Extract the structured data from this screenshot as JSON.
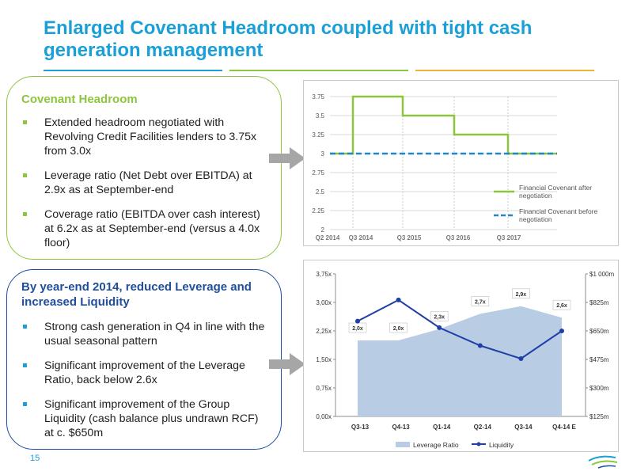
{
  "slide": {
    "title": "Enlarged Covenant Headroom coupled with tight cash generation management",
    "page_number": "15"
  },
  "colors": {
    "title_blue": "#1a9fd6",
    "green": "#8cc63f",
    "dark_blue": "#1f4e9c",
    "area_blue": "#b8cce4",
    "line_blue": "#1f3fa8",
    "dash_blue": "#1e88c8",
    "gold": "#f2b233",
    "arrow_gray": "#a6a6a6"
  },
  "covenant_panel": {
    "heading": "Covenant Headroom",
    "bullets": [
      "Extended headroom negotiated with Revolving Credit Facilities lenders to 3.75x from 3.0x",
      "Leverage ratio (Net Debt over EBITDA) at 2.9x as at September-end",
      "Coverage ratio (EBITDA over cash interest) at 6.2x as at September-end (versus a 4.0x floor)"
    ]
  },
  "liquidity_panel": {
    "heading": "By year-end 2014, reduced Leverage and increased Liquidity",
    "bullets": [
      "Strong cash generation in Q4 in line with the usual seasonal pattern",
      "Significant improvement of the Leverage Ratio, back below 2.6x",
      "Significant improvement of the Group Liquidity (cash balance plus undrawn RCF) at c. $650m"
    ]
  },
  "chart_data": [
    {
      "type": "line",
      "x_labels": [
        "Q2 2014",
        "Q3 2014",
        "Q3 2015",
        "Q3 2016",
        "Q3 2017"
      ],
      "y_ticks": [
        "2",
        "2.25",
        "2.5",
        "2.75",
        "3",
        "3.25",
        "3.5",
        "3.75"
      ],
      "ylim": [
        2,
        3.75
      ],
      "grid": true,
      "legend_position": "bottom-right",
      "series": [
        {
          "name": "Financial Covenant after negotiation",
          "step_values": [
            3.0,
            3.75,
            3.5,
            3.25,
            3.0
          ],
          "style": "solid"
        },
        {
          "name": "Financial Covenant before negotiation",
          "step_values": [
            3.0,
            3.0,
            3.0,
            3.0,
            3.0
          ],
          "style": "dashed"
        }
      ]
    },
    {
      "type": "area",
      "categories": [
        "Q3-13",
        "Q4-13",
        "Q1-14",
        "Q2-14",
        "Q3-14",
        "Q4-14 E"
      ],
      "left_axis_ticks": [
        "0,00x",
        "0,75x",
        "1,50x",
        "2,25x",
        "3,00x",
        "3,75x"
      ],
      "left_ylim": [
        0,
        3.75
      ],
      "right_axis_ticks": [
        "$125m",
        "$300m",
        "$475m",
        "$650m",
        "$825m",
        "$1 000m"
      ],
      "right_ylim": [
        125,
        1000
      ],
      "legend_position": "bottom",
      "series": [
        {
          "name": "Leverage Ratio",
          "axis": "left",
          "values": [
            2.0,
            2.0,
            2.3,
            2.7,
            2.9,
            2.6
          ],
          "labels": [
            "2,0x",
            "2,0x",
            "2,3x",
            "2,7x",
            "2,9x",
            "2,6x"
          ]
        },
        {
          "name": "Liquidity",
          "axis": "right",
          "values": [
            710,
            840,
            670,
            560,
            480,
            650
          ]
        }
      ]
    }
  ]
}
